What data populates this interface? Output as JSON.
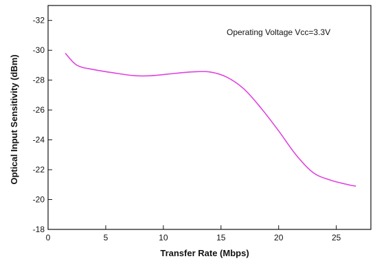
{
  "chart_data": {
    "type": "line",
    "title": "",
    "xlabel": "Transfer Rate (Mbps)",
    "ylabel": "Optical Input Sensitivity (dBm)",
    "annotation": "Operating Voltage Vcc=3.3V",
    "xlim": [
      0,
      28
    ],
    "ylim": [
      -18,
      -33
    ],
    "y_reversed": true,
    "x_ticks": [
      0,
      5,
      10,
      15,
      20,
      25
    ],
    "y_ticks": [
      -32,
      -30,
      -28,
      -26,
      -24,
      -22,
      -20,
      -18
    ],
    "grid": false,
    "line_color": "#e040e0",
    "series": [
      {
        "x": [
          1.5,
          2.5,
          4,
          6,
          7.5,
          9,
          11,
          12.5,
          14,
          15.5,
          17,
          18.5,
          20,
          21.5,
          23,
          24.5,
          26,
          26.7
        ],
        "y": [
          -29.8,
          -29.0,
          -28.7,
          -28.45,
          -28.3,
          -28.3,
          -28.45,
          -28.55,
          -28.55,
          -28.2,
          -27.4,
          -26.1,
          -24.6,
          -23.0,
          -21.8,
          -21.3,
          -21.0,
          -20.9
        ]
      }
    ]
  }
}
